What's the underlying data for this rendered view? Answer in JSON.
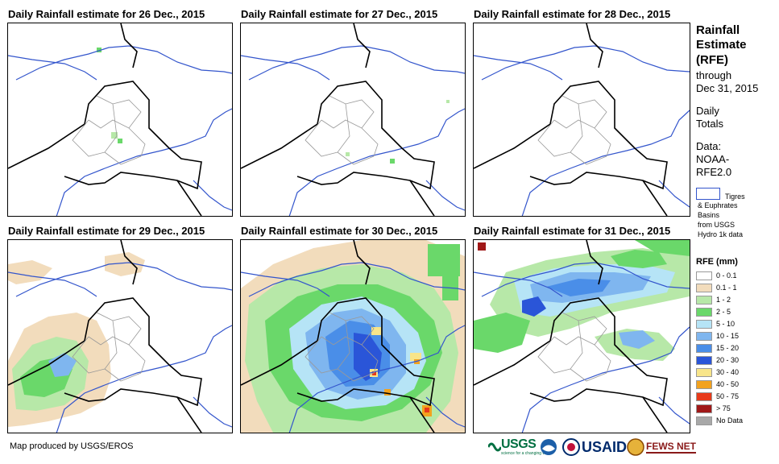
{
  "panels": [
    {
      "title": "Daily Rainfall estimate for 26 Dec., 2015"
    },
    {
      "title": "Daily Rainfall estimate for 27 Dec., 2015"
    },
    {
      "title": "Daily Rainfall estimate for 28 Dec., 2015"
    },
    {
      "title": "Daily Rainfall estimate for 29 Dec., 2015"
    },
    {
      "title": "Daily Rainfall estimate for 30 Dec., 2015"
    },
    {
      "title": "Daily Rainfall estimate for 31 Dec., 2015"
    }
  ],
  "side": {
    "head1": "Rainfall",
    "head2": "Estimate",
    "head3": "(RFE)",
    "through": "through",
    "date": "Dec 31, 2015",
    "daily": "Daily",
    "totals": "Totals",
    "data_label": "Data:",
    "noaa": "NOAA-",
    "rfe": "RFE2.0",
    "basin1": "Tigres",
    "basin2": "& Euphrates",
    "basin3": "Basins",
    "basin4": "from USGS",
    "basin5": "Hydro 1k data"
  },
  "legend": {
    "title": "RFE (mm)",
    "items": [
      {
        "label": "0 - 0.1",
        "color": "#ffffff"
      },
      {
        "label": "0.1 - 1",
        "color": "#f2dcbc"
      },
      {
        "label": "1 - 2",
        "color": "#b7e8a8"
      },
      {
        "label": "2 - 5",
        "color": "#6ad86a"
      },
      {
        "label": "5 - 10",
        "color": "#b6e4f6"
      },
      {
        "label": "10 - 15",
        "color": "#7fb6ef"
      },
      {
        "label": "15 - 20",
        "color": "#4a8ee8"
      },
      {
        "label": "20 - 30",
        "color": "#2a55d8"
      },
      {
        "label": "30 - 40",
        "color": "#f8e58a"
      },
      {
        "label": "40 - 50",
        "color": "#f2a21e"
      },
      {
        "label": "50 - 75",
        "color": "#e83a1a"
      },
      {
        "label": "> 75",
        "color": "#a01818"
      },
      {
        "label": "No Data",
        "color": "#a8a8a8"
      }
    ]
  },
  "footer": {
    "credit": "Map produced by USGS/EROS",
    "usgs": "USGS",
    "usgs_tag": "science for a changing world",
    "usaid": "USAID",
    "fews": "FEWS NET"
  }
}
